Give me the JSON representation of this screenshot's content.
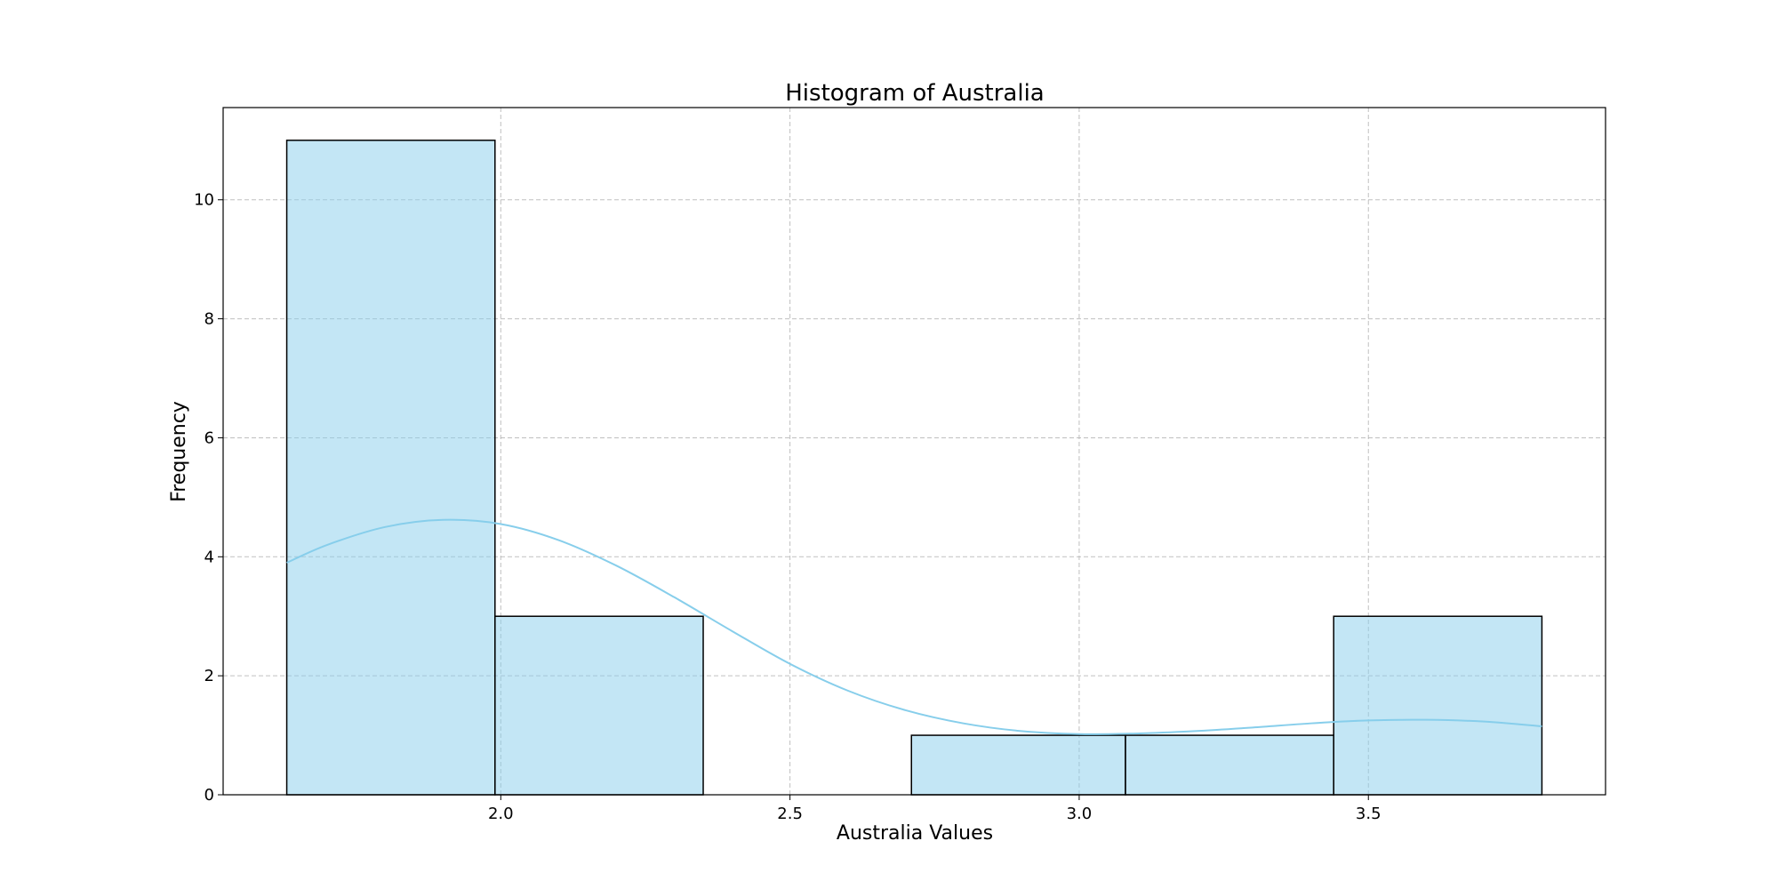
{
  "chart_data": {
    "type": "bar",
    "title": "Histogram of Australia",
    "xlabel": "Australia Values",
    "ylabel": "Frequency",
    "xlim": [
      1.52,
      3.91
    ],
    "ylim": [
      0,
      11.55
    ],
    "xticks": [
      2.0,
      2.5,
      3.0,
      3.5
    ],
    "xtick_labels": [
      "2.0",
      "2.5",
      "3.0",
      "3.5"
    ],
    "yticks": [
      0,
      2,
      4,
      6,
      8,
      10
    ],
    "ytick_labels": [
      "0",
      "2",
      "4",
      "6",
      "8",
      "10"
    ],
    "grid": true,
    "bins": [
      {
        "start": 1.63,
        "end": 1.99,
        "count": 11
      },
      {
        "start": 1.99,
        "end": 2.35,
        "count": 3
      },
      {
        "start": 2.35,
        "end": 2.71,
        "count": 0
      },
      {
        "start": 2.71,
        "end": 3.08,
        "count": 1
      },
      {
        "start": 3.08,
        "end": 3.44,
        "count": 1
      },
      {
        "start": 3.44,
        "end": 3.8,
        "count": 3
      }
    ],
    "kde": {
      "x": [
        1.63,
        1.7,
        1.8,
        1.9,
        2.0,
        2.1,
        2.2,
        2.3,
        2.4,
        2.5,
        2.6,
        2.7,
        2.8,
        2.9,
        3.0,
        3.1,
        3.2,
        3.3,
        3.4,
        3.5,
        3.6,
        3.7,
        3.8
      ],
      "y": [
        3.9,
        4.2,
        4.5,
        4.62,
        4.55,
        4.28,
        3.85,
        3.32,
        2.75,
        2.2,
        1.75,
        1.42,
        1.2,
        1.07,
        1.02,
        1.03,
        1.07,
        1.13,
        1.2,
        1.25,
        1.26,
        1.23,
        1.15
      ]
    },
    "colors": {
      "bar_fill": "#87ceeb",
      "bar_opacity": 0.5,
      "bar_edge": "#000000",
      "kde_line": "#87ceeb",
      "grid": "#b0b0b0"
    }
  }
}
